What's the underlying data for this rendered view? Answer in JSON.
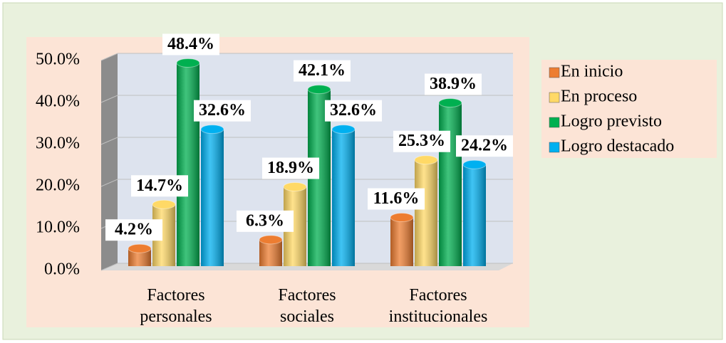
{
  "chart_data": {
    "type": "bar",
    "categories": [
      "Factores personales",
      "Factores sociales",
      "Factores institucionales"
    ],
    "series": [
      {
        "name": "En inicio",
        "color": "#ed7d31",
        "values": [
          4.2,
          6.3,
          11.6
        ],
        "value_labels": [
          "4.2%",
          "6.3%",
          "11.6%"
        ]
      },
      {
        "name": "En proceso",
        "color": "#ffd966",
        "values": [
          14.7,
          18.9,
          25.3
        ],
        "value_labels": [
          "14.7%",
          "18.9%",
          "25.3%"
        ]
      },
      {
        "name": "Logro previsto",
        "color": "#00b050",
        "values": [
          48.4,
          42.1,
          38.9
        ],
        "value_labels": [
          "48.4%",
          "42.1%",
          "38.9%"
        ]
      },
      {
        "name": "Logro destacado",
        "color": "#00b0f0",
        "values": [
          32.6,
          32.6,
          24.2
        ],
        "value_labels": [
          "32.6%",
          "32.6%",
          "24.2%"
        ]
      }
    ],
    "ylim": [
      0,
      50
    ],
    "yticks": [
      {
        "value": 0,
        "label": "0.0%"
      },
      {
        "value": 10,
        "label": "10.0%"
      },
      {
        "value": 20,
        "label": "20.0%"
      },
      {
        "value": 30,
        "label": "30.0%"
      },
      {
        "value": 40,
        "label": "40.0%"
      },
      {
        "value": 50,
        "label": "50.0%"
      }
    ],
    "grid": true,
    "legend": "right"
  }
}
